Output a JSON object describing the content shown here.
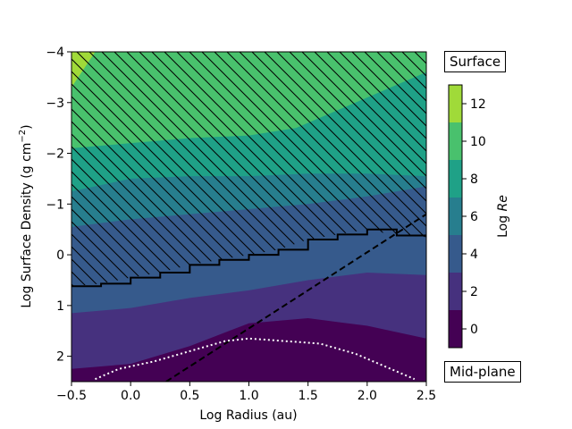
{
  "chart_data": {
    "type": "heatmap",
    "xlabel": "Log Radius (au)",
    "ylabel": "Log Surface Density (g cm",
    "ylabel_exponent": "−2",
    "ylabel_close": ")",
    "xlim": [
      -0.5,
      2.5
    ],
    "ylim": [
      2.5,
      -4
    ],
    "x_ticks": [
      -0.5,
      0.0,
      0.5,
      1.0,
      1.5,
      2.0,
      2.5
    ],
    "x_tick_labels": [
      "−0.5",
      "0.0",
      "0.5",
      "1.0",
      "1.5",
      "2.0",
      "2.5"
    ],
    "y_ticks": [
      -4,
      -3,
      -2,
      -1,
      0,
      1,
      2
    ],
    "y_tick_labels": [
      "−4",
      "−3",
      "−2",
      "−1",
      "0",
      "1",
      "2"
    ],
    "colorbar": {
      "label_prefix": "Log ",
      "label_italic": "Re",
      "range": [
        -1,
        13
      ],
      "ticks": [
        0,
        2,
        4,
        6,
        8,
        10,
        12
      ],
      "tick_labels": [
        "0",
        "2",
        "4",
        "6",
        "8",
        "10",
        "12"
      ],
      "levels": [
        -1,
        1,
        3,
        5,
        7,
        9,
        11,
        13
      ],
      "colors": [
        "#440154",
        "#46317e",
        "#365a8c",
        "#277e8e",
        "#1fa187",
        "#49c16d",
        "#a0da39",
        "#fde725"
      ]
    },
    "contours": [
      {
        "level": 11,
        "points": [
          [
            -0.5,
            -4.0
          ],
          [
            -0.3,
            -4.0
          ],
          [
            -0.5,
            -3.3
          ]
        ]
      },
      {
        "level": 9,
        "points": [
          [
            -0.5,
            -2.1
          ],
          [
            0.0,
            -2.2
          ],
          [
            0.5,
            -2.3
          ],
          [
            1.0,
            -2.35
          ],
          [
            1.4,
            -2.5
          ],
          [
            1.8,
            -2.9
          ],
          [
            2.2,
            -3.3
          ],
          [
            2.5,
            -3.6
          ]
        ]
      },
      {
        "level": 7,
        "points": [
          [
            -0.5,
            -1.7
          ],
          [
            0.0,
            -1.7
          ],
          [
            0.5,
            -1.75
          ],
          [
            1.0,
            -1.8
          ],
          [
            1.5,
            -1.95
          ],
          [
            2.0,
            -2.05
          ],
          [
            2.5,
            -2.1
          ]
        ]
      },
      {
        "level": 7,
        "points": [
          [
            -0.5,
            -1.25
          ],
          [
            0.0,
            -1.5
          ],
          [
            0.5,
            -1.55
          ],
          [
            1.0,
            -1.55
          ],
          [
            1.5,
            -1.6
          ],
          [
            2.0,
            -1.6
          ],
          [
            2.5,
            -1.55
          ]
        ]
      },
      {
        "level": 5,
        "points": [
          [
            -0.5,
            -0.55
          ],
          [
            0.0,
            -0.7
          ],
          [
            0.5,
            -0.8
          ],
          [
            1.0,
            -0.9
          ],
          [
            1.5,
            -1.0
          ],
          [
            2.0,
            -1.15
          ],
          [
            2.5,
            -1.35
          ]
        ]
      },
      {
        "level": 3,
        "points": [
          [
            -0.5,
            1.15
          ],
          [
            0.0,
            1.05
          ],
          [
            0.5,
            0.85
          ],
          [
            1.0,
            0.7
          ],
          [
            1.5,
            0.5
          ],
          [
            2.0,
            0.35
          ],
          [
            2.5,
            0.4
          ]
        ]
      },
      {
        "level": 1,
        "points": [
          [
            -0.5,
            2.25
          ],
          [
            0.0,
            2.15
          ],
          [
            0.5,
            1.8
          ],
          [
            1.0,
            1.35
          ],
          [
            1.5,
            1.25
          ],
          [
            2.0,
            1.4
          ],
          [
            2.5,
            1.65
          ]
        ]
      }
    ],
    "hatch_boundary": [
      [
        -0.5,
        0.62
      ],
      [
        -0.25,
        0.57
      ],
      [
        0.0,
        0.45
      ],
      [
        0.25,
        0.35
      ],
      [
        0.5,
        0.2
      ],
      [
        0.75,
        0.1
      ],
      [
        1.0,
        0.0
      ],
      [
        1.25,
        -0.1
      ],
      [
        1.5,
        -0.3
      ],
      [
        1.75,
        -0.4
      ],
      [
        2.0,
        -0.5
      ],
      [
        2.25,
        -0.38
      ],
      [
        2.5,
        -0.35
      ]
    ],
    "dashed_line": [
      [
        0.3,
        2.5
      ],
      [
        2.5,
        -0.8
      ]
    ],
    "dotted_curve": [
      [
        -0.3,
        2.45
      ],
      [
        -0.1,
        2.25
      ],
      [
        0.2,
        2.1
      ],
      [
        0.5,
        1.9
      ],
      [
        0.8,
        1.7
      ],
      [
        1.0,
        1.65
      ],
      [
        1.3,
        1.7
      ],
      [
        1.6,
        1.75
      ],
      [
        1.9,
        1.95
      ],
      [
        2.2,
        2.25
      ],
      [
        2.4,
        2.45
      ]
    ],
    "annotations": {
      "top": "Surface",
      "bottom": "Mid-plane"
    }
  }
}
